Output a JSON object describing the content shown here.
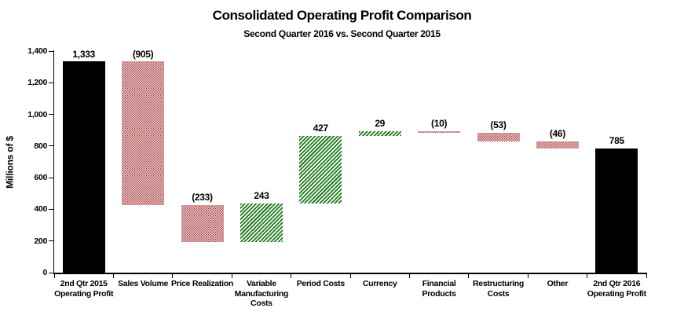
{
  "title": "Consolidated Operating Profit Comparison",
  "subtitle": "Second Quarter 2016 vs. Second Quarter 2015",
  "chart_data": {
    "type": "bar",
    "subtype": "waterfall",
    "title": "Consolidated Operating Profit Comparison",
    "subtitle": "Second Quarter 2016 vs. Second Quarter 2015",
    "ylabel": "Millions of $",
    "ylim": [
      0,
      1400
    ],
    "grid": false,
    "legend": "none",
    "y_ticks": [
      {
        "v": 0,
        "label": "0"
      },
      {
        "v": 200,
        "label": "200"
      },
      {
        "v": 400,
        "label": "400"
      },
      {
        "v": 600,
        "label": "600"
      },
      {
        "v": 800,
        "label": "800"
      },
      {
        "v": 1000,
        "label": "1,000"
      },
      {
        "v": 1200,
        "label": "1,200"
      },
      {
        "v": 1400,
        "label": "1,400"
      }
    ],
    "colors": {
      "endpoint_solid": "#000000",
      "decrease_dots": "#9E2428",
      "increase_hatch": "#1E7A1E"
    },
    "bars": [
      {
        "name": "2nd-qtr-2015-operating-profit",
        "category_lines": [
          "2nd Qtr 2015",
          "Operating Profit"
        ],
        "label": "1,333",
        "value": 1333,
        "start": 0,
        "end": 1333,
        "style": "solid"
      },
      {
        "name": "sales-volume",
        "category_lines": [
          "Sales Volume"
        ],
        "label": "(905)",
        "value": -905,
        "start": 1333,
        "end": 428,
        "style": "dots"
      },
      {
        "name": "price-realization",
        "category_lines": [
          "Price Realization"
        ],
        "label": "(233)",
        "value": -233,
        "start": 428,
        "end": 195,
        "style": "dots"
      },
      {
        "name": "variable-manufacturing-costs",
        "category_lines": [
          "Variable",
          "Manufacturing",
          "Costs"
        ],
        "label": "243",
        "value": 243,
        "start": 195,
        "end": 438,
        "style": "hatch"
      },
      {
        "name": "period-costs",
        "category_lines": [
          "Period Costs"
        ],
        "label": "427",
        "value": 427,
        "start": 438,
        "end": 865,
        "style": "hatch"
      },
      {
        "name": "currency",
        "category_lines": [
          "Currency"
        ],
        "label": "29",
        "value": 29,
        "start": 865,
        "end": 894,
        "style": "hatch"
      },
      {
        "name": "financial-products",
        "category_lines": [
          "Financial",
          "Products"
        ],
        "label": "(10)",
        "value": -10,
        "start": 894,
        "end": 884,
        "style": "dots"
      },
      {
        "name": "restructuring-costs",
        "category_lines": [
          "Restructuring",
          "Costs"
        ],
        "label": "(53)",
        "value": -53,
        "start": 884,
        "end": 831,
        "style": "dots"
      },
      {
        "name": "other",
        "category_lines": [
          "Other"
        ],
        "label": "(46)",
        "value": -46,
        "start": 831,
        "end": 785,
        "style": "dots"
      },
      {
        "name": "2nd-qtr-2016-operating-profit",
        "category_lines": [
          "2nd Qtr 2016",
          "Operating Profit"
        ],
        "label": "785",
        "value": 785,
        "start": 0,
        "end": 785,
        "style": "solid"
      }
    ]
  }
}
